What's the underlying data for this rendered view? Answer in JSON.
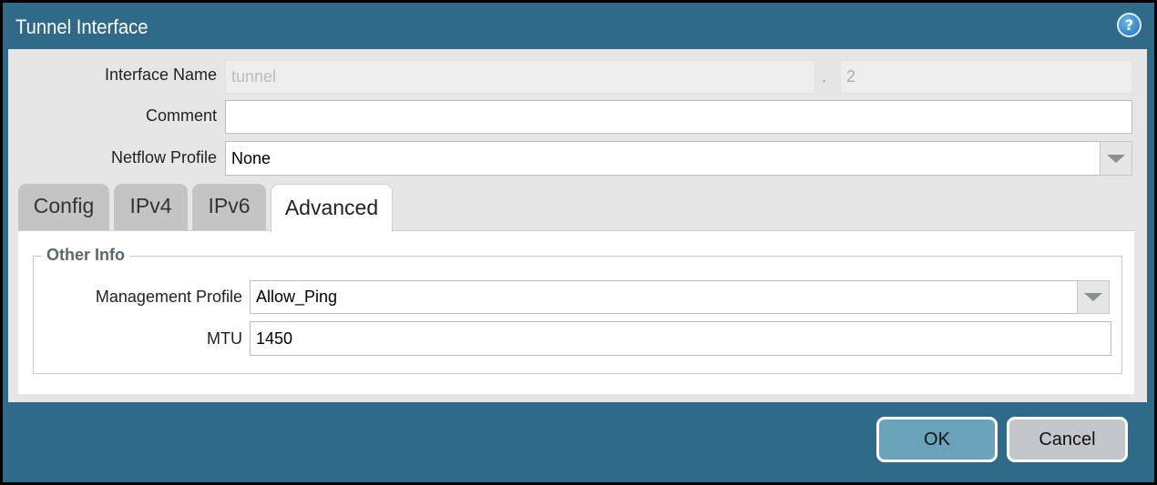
{
  "dialog": {
    "title": "Tunnel Interface",
    "help_icon": "help-icon"
  },
  "fields": {
    "interface_name": {
      "label": "Interface Name",
      "value": "tunnel",
      "separator": ".",
      "suffix": "2"
    },
    "comment": {
      "label": "Comment",
      "value": ""
    },
    "netflow_profile": {
      "label": "Netflow Profile",
      "value": "None"
    }
  },
  "tabs": [
    {
      "label": "Config"
    },
    {
      "label": "IPv4"
    },
    {
      "label": "IPv6"
    },
    {
      "label": "Advanced",
      "active": true
    }
  ],
  "advanced": {
    "section_title": "Other Info",
    "management_profile": {
      "label": "Management Profile",
      "value": "Allow_Ping"
    },
    "mtu": {
      "label": "MTU",
      "value": "1450"
    }
  },
  "buttons": {
    "ok": "OK",
    "cancel": "Cancel"
  },
  "colors": {
    "titlebar": "#316a89",
    "ok": "#6aa3b9",
    "cancel": "#c3c6cb"
  }
}
